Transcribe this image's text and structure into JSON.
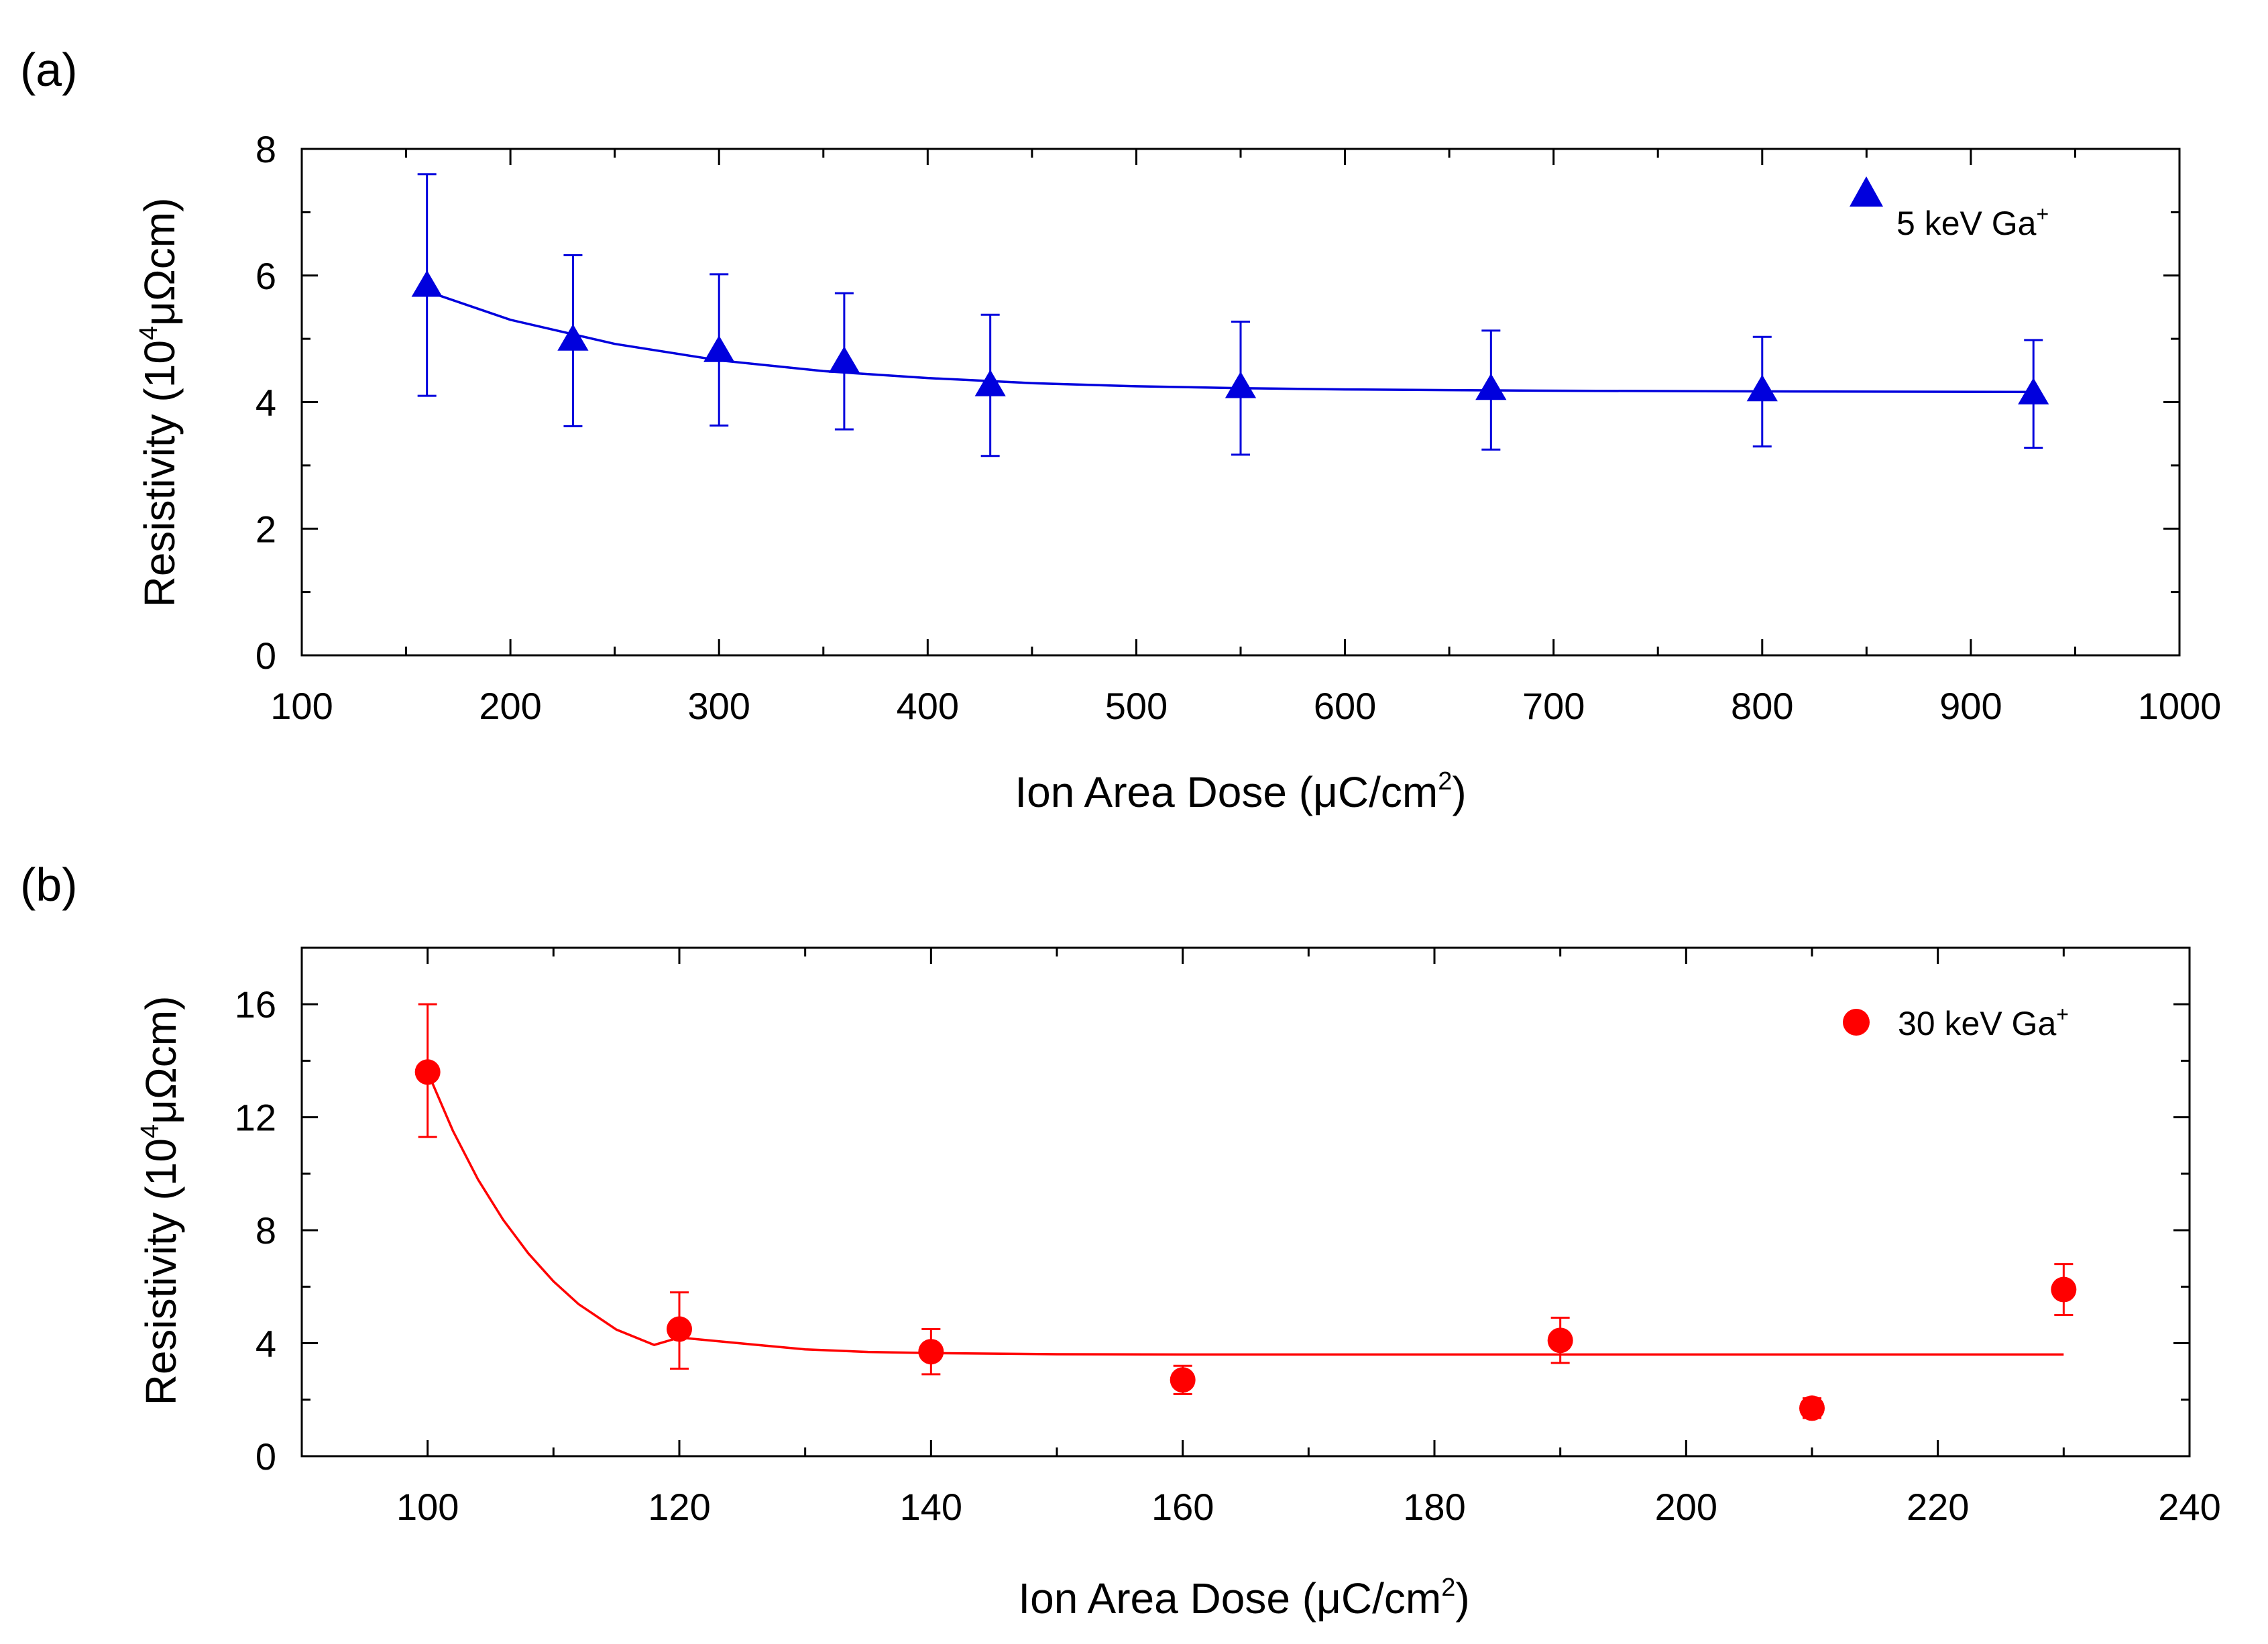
{
  "chart_data": [
    {
      "type": "scatter",
      "panel_label": "(a)",
      "title": "",
      "xlabel": "Ion Area Dose (μC/cm",
      "xlabel_sup": "2",
      "xlabel_close": ")",
      "ylabel": "Resistivity (10",
      "ylabel_sup": "4",
      "ylabel_unit": "μΩcm)",
      "xlim": [
        100,
        1000
      ],
      "ylim": [
        0,
        8
      ],
      "x_ticks": [
        100,
        200,
        300,
        400,
        500,
        600,
        700,
        800,
        900,
        1000
      ],
      "x_tick_labels": [
        "100",
        "200",
        "300",
        "400",
        "500",
        "600",
        "700",
        "800",
        "900",
        "1000"
      ],
      "x_minor_step": 50,
      "y_ticks": [
        0,
        2,
        4,
        6,
        8
      ],
      "y_tick_labels": [
        "0",
        "2",
        "4",
        "6",
        "8"
      ],
      "y_minor_step": 1,
      "color": "#0000dd",
      "marker": "triangle",
      "legend": {
        "label": "5 keV Ga",
        "label_sup": "+",
        "position": "top-right"
      },
      "series": [
        {
          "name": "5 keV Ga+",
          "x": [
            160,
            230,
            300,
            360,
            430,
            550,
            670,
            800,
            930
          ],
          "y": [
            5.85,
            5.0,
            4.82,
            4.65,
            4.28,
            4.25,
            4.22,
            4.2,
            4.15
          ],
          "err_upper": [
            7.6,
            6.32,
            6.02,
            5.72,
            5.38,
            5.27,
            5.13,
            5.03,
            4.98
          ],
          "err_lower": [
            4.1,
            3.62,
            3.63,
            3.57,
            3.15,
            3.17,
            3.25,
            3.3,
            3.28
          ]
        }
      ],
      "fit": {
        "x": [
          160,
          200,
          250,
          300,
          350,
          400,
          450,
          500,
          550,
          600,
          650,
          700,
          800,
          930
        ],
        "y": [
          5.75,
          5.3,
          4.92,
          4.66,
          4.49,
          4.38,
          4.3,
          4.25,
          4.22,
          4.2,
          4.19,
          4.18,
          4.17,
          4.16
        ]
      }
    },
    {
      "type": "scatter",
      "panel_label": "(b)",
      "title": "",
      "xlabel": "Ion Area Dose (μC/cm",
      "xlabel_sup": "2",
      "xlabel_close": ")",
      "ylabel": "Resistivity (10",
      "ylabel_sup": "4",
      "ylabel_unit": "μΩcm)",
      "xlim": [
        90,
        240
      ],
      "ylim": [
        0,
        18
      ],
      "x_ticks": [
        100,
        120,
        140,
        160,
        180,
        200,
        220,
        240
      ],
      "x_tick_labels": [
        "100",
        "120",
        "140",
        "160",
        "180",
        "200",
        "220",
        "240"
      ],
      "x_minor_step": 10,
      "y_ticks": [
        0,
        4,
        8,
        12,
        16
      ],
      "y_tick_labels": [
        "0",
        "4",
        "8",
        "12",
        "16"
      ],
      "y_minor_step": 2,
      "color": "#ff0000",
      "marker": "circle",
      "legend": {
        "label": "30 keV Ga",
        "label_sup": "+",
        "position": "top-right"
      },
      "series": [
        {
          "name": "30 keV Ga+",
          "x": [
            100,
            120,
            140,
            160,
            190,
            210,
            230
          ],
          "y": [
            13.6,
            4.5,
            3.7,
            2.7,
            4.1,
            1.7,
            5.9
          ],
          "err_upper": [
            16.0,
            5.8,
            4.5,
            3.2,
            4.9,
            2.05,
            6.8
          ],
          "err_lower": [
            11.3,
            3.1,
            2.9,
            2.2,
            3.3,
            1.35,
            5.0
          ]
        }
      ],
      "fit": {
        "x": [
          100,
          102,
          104,
          106,
          108,
          110,
          112,
          115,
          118,
          120,
          125,
          130,
          135,
          140,
          150,
          160,
          180,
          200,
          230
        ],
        "y": [
          13.6,
          11.53,
          9.8,
          8.37,
          7.18,
          6.19,
          5.38,
          4.48,
          3.94,
          4.2,
          3.99,
          3.78,
          3.69,
          3.65,
          3.61,
          3.6,
          3.6,
          3.6,
          3.6
        ]
      }
    }
  ]
}
